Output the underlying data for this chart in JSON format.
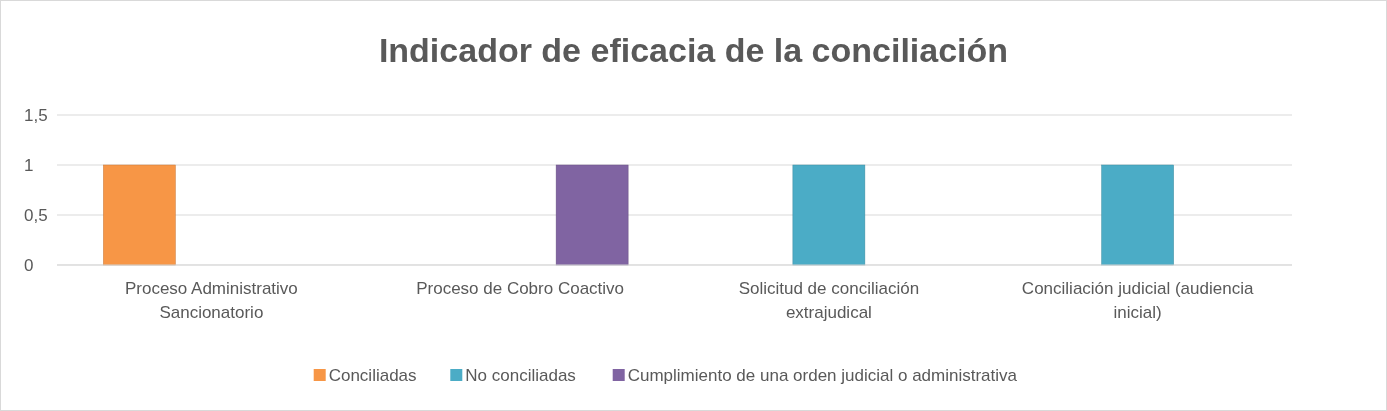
{
  "chart_data": {
    "type": "bar",
    "title": "Indicador de eficacia de la conciliación",
    "categories": [
      "Proceso Administrativo Sancionatorio",
      "Proceso de Cobro Coactivo",
      "Solicitud de conciliación extrajudical",
      "Conciliación judicial (audiencia inicial)"
    ],
    "series": [
      {
        "name": "Conciliadas",
        "color": "#f79646",
        "values": [
          1,
          0,
          0,
          0
        ]
      },
      {
        "name": "No conciliadas",
        "color": "#4bacc6",
        "values": [
          0,
          0,
          1,
          1
        ]
      },
      {
        "name": "Cumplimiento de una orden judicial o administrativa",
        "color": "#8064a2",
        "values": [
          0,
          1,
          0,
          0
        ]
      }
    ],
    "ylim": [
      0,
      1.5
    ],
    "yticks": [
      0,
      {
        "value": 0.5,
        "label": "0,5"
      },
      1,
      {
        "value": 1.5,
        "label": "1,5"
      }
    ],
    "grid": "y",
    "legend": "bottom"
  }
}
